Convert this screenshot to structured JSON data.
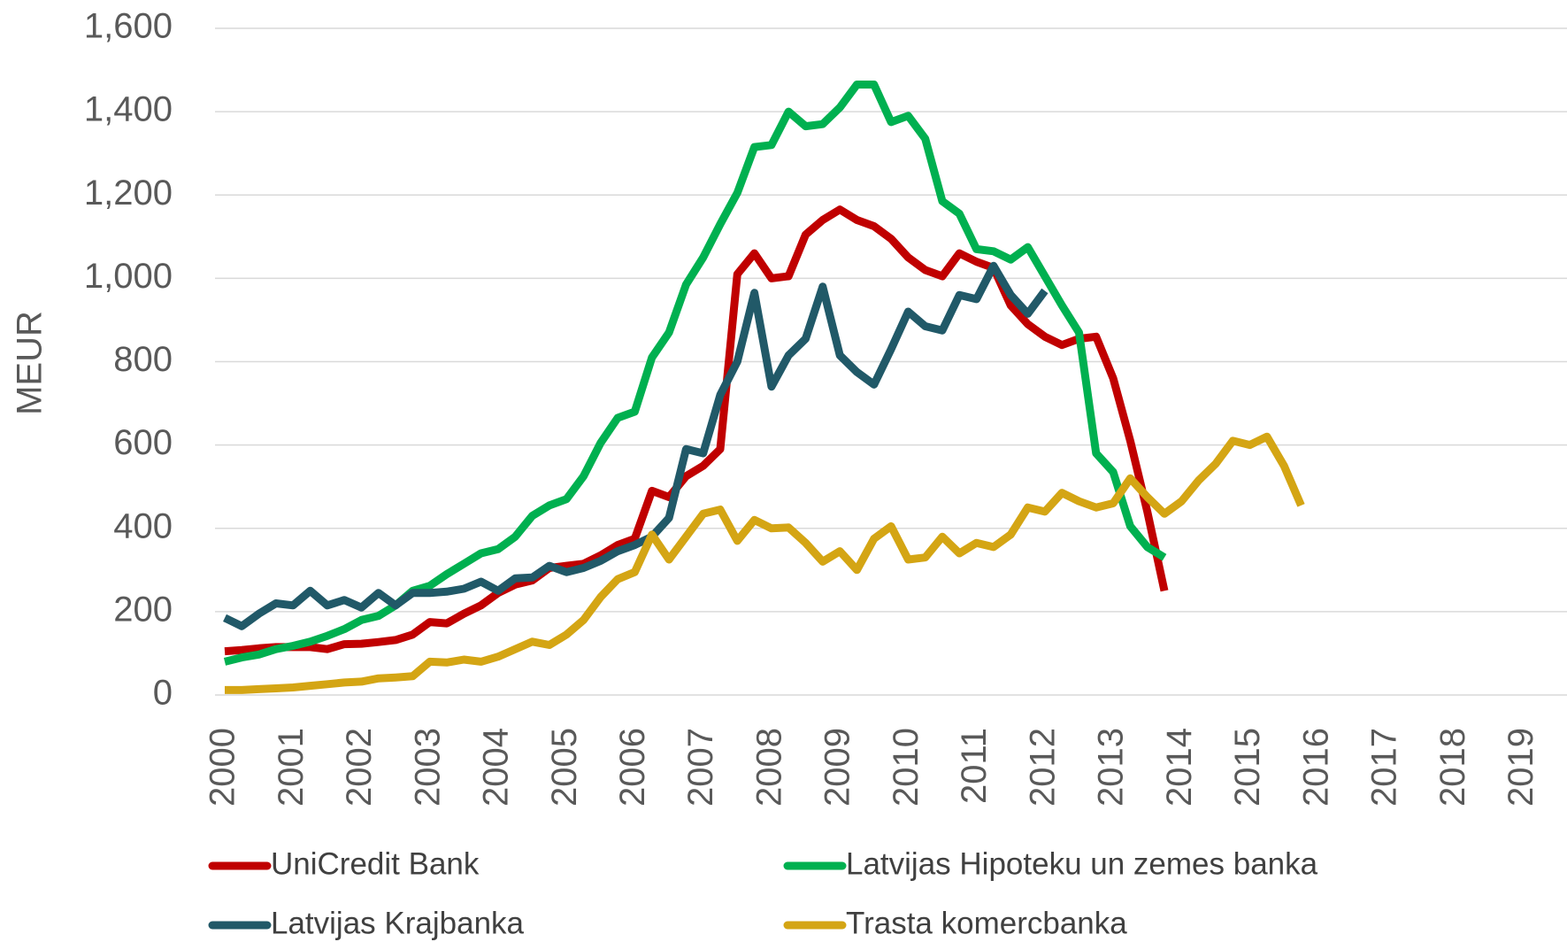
{
  "chart_data": {
    "type": "line",
    "ylabel": "MEUR",
    "categories": [
      "2000",
      null,
      null,
      null,
      "2001",
      null,
      null,
      null,
      "2002",
      null,
      null,
      null,
      "2003",
      null,
      null,
      null,
      "2004",
      null,
      null,
      null,
      "2005",
      null,
      null,
      null,
      "2006",
      null,
      null,
      null,
      "2007",
      null,
      null,
      null,
      "2008",
      null,
      null,
      null,
      "2009",
      null,
      null,
      null,
      "2010",
      null,
      null,
      null,
      "2011",
      null,
      null,
      null,
      "2012",
      null,
      null,
      null,
      "2013",
      null,
      null,
      null,
      "2014",
      null,
      null,
      null,
      "2015",
      null,
      null,
      null,
      "2016",
      null,
      null,
      null,
      "2017",
      null,
      null,
      null,
      "2018",
      null,
      null,
      null,
      "2019",
      null,
      null,
      null
    ],
    "series": [
      {
        "name": "UniCredit Bank",
        "color": "#c00000",
        "values": [
          105,
          108,
          112,
          115,
          115,
          115,
          110,
          122,
          123,
          127,
          132,
          145,
          175,
          172,
          195,
          215,
          245,
          265,
          275,
          305,
          310,
          315,
          335,
          360,
          375,
          490,
          475,
          525,
          550,
          590,
          1010,
          1060,
          1000,
          1005,
          1105,
          1140,
          1165,
          1140,
          1125,
          1095,
          1050,
          1020,
          1005,
          1060,
          1040,
          1025,
          935,
          890,
          860,
          840,
          855,
          860,
          760,
          610,
          440,
          250,
          null,
          null,
          null,
          null,
          null,
          null,
          null,
          null,
          null,
          null,
          null,
          null,
          null,
          null,
          null,
          null,
          null,
          null,
          null,
          null,
          null,
          null,
          null,
          null
        ]
      },
      {
        "name": "Latvijas Hipoteku un zemes banka",
        "color": "#00b050",
        "values": [
          80,
          90,
          97,
          110,
          118,
          128,
          142,
          158,
          180,
          190,
          215,
          250,
          262,
          290,
          315,
          340,
          350,
          380,
          430,
          455,
          470,
          525,
          605,
          665,
          680,
          810,
          870,
          985,
          1050,
          1130,
          1205,
          1315,
          1320,
          1400,
          1365,
          1370,
          1410,
          1465,
          1465,
          1375,
          1390,
          1335,
          1185,
          1155,
          1070,
          1065,
          1045,
          1075,
          1005,
          935,
          870,
          580,
          535,
          405,
          355,
          330,
          null,
          null,
          null,
          null,
          null,
          null,
          null,
          null,
          null,
          null,
          null,
          null,
          null,
          null,
          null,
          null,
          null,
          null,
          null,
          null,
          null,
          null,
          null,
          null
        ]
      },
      {
        "name": "Latvijas Krajbanka",
        "color": "#215968",
        "values": [
          185,
          165,
          195,
          220,
          215,
          250,
          215,
          228,
          210,
          245,
          215,
          245,
          245,
          248,
          255,
          272,
          250,
          280,
          282,
          310,
          295,
          305,
          322,
          345,
          360,
          380,
          425,
          590,
          580,
          720,
          800,
          965,
          740,
          815,
          855,
          980,
          815,
          775,
          745,
          830,
          920,
          885,
          875,
          960,
          950,
          1030,
          960,
          915,
          970,
          null,
          null,
          null,
          null,
          null,
          null,
          null,
          null,
          null,
          null,
          null,
          null,
          null,
          null,
          null,
          null,
          null,
          null,
          null,
          null,
          null,
          null,
          null,
          null,
          null,
          null,
          null,
          null,
          null,
          null,
          null
        ]
      },
      {
        "name": "Trasta komercbanka",
        "color": "#d4a514",
        "values": [
          12,
          12,
          14,
          16,
          18,
          22,
          26,
          30,
          32,
          40,
          42,
          45,
          80,
          78,
          85,
          80,
          92,
          110,
          128,
          120,
          145,
          180,
          235,
          278,
          295,
          385,
          325,
          380,
          435,
          445,
          370,
          420,
          400,
          402,
          365,
          320,
          345,
          300,
          375,
          405,
          325,
          330,
          380,
          340,
          365,
          355,
          385,
          450,
          440,
          485,
          465,
          450,
          460,
          520,
          475,
          435,
          465,
          515,
          555,
          610,
          600,
          620,
          550,
          455,
          null,
          null,
          null,
          null,
          null,
          null,
          null,
          null,
          null,
          null,
          null,
          null,
          null,
          null,
          null,
          null
        ]
      }
    ],
    "ylim": [
      0,
      1600
    ],
    "yticks": [
      0,
      200,
      400,
      600,
      800,
      {
        "value": 1000,
        "label": "1,000"
      },
      {
        "value": 1200,
        "label": "1,200"
      },
      {
        "value": 1400,
        "label": "1,400"
      },
      {
        "value": 1600,
        "label": "1,600"
      }
    ],
    "grid": true
  }
}
